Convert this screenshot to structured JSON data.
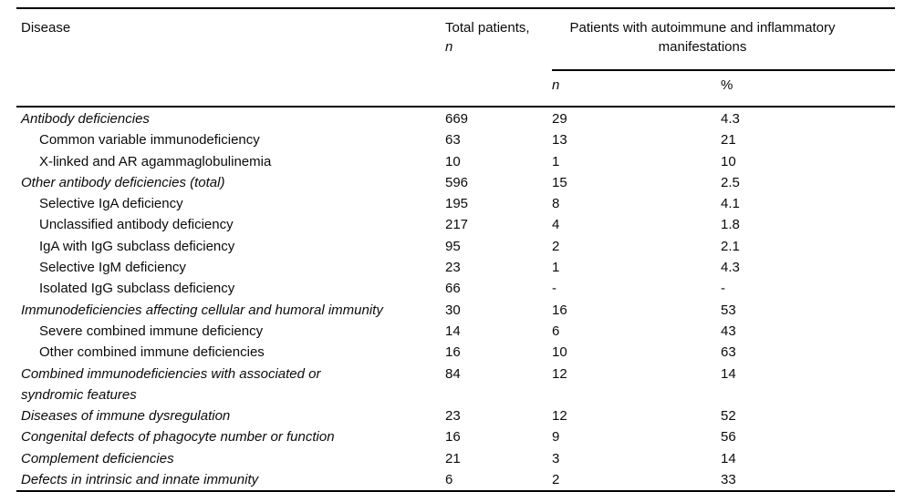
{
  "table": {
    "header": {
      "disease": "Disease",
      "total_line1": "Total patients,",
      "total_line2": "n",
      "spanner": "Patients with autoimmune and inflammatory manifestations",
      "sub_n": "n",
      "sub_pct": "%"
    },
    "rows": [
      {
        "disease": "Antibody deficiencies",
        "total": "669",
        "n": "29",
        "pct": "4.3"
      },
      {
        "disease": "Common variable immunodeficiency",
        "total": "63",
        "n": "13",
        "pct": "21"
      },
      {
        "disease": "X-linked and AR agammaglobulinemia",
        "total": "10",
        "n": "1",
        "pct": "10"
      },
      {
        "disease": "Other antibody deficiencies (total)",
        "total": "596",
        "n": "15",
        "pct": "2.5"
      },
      {
        "disease": "Selective IgA deficiency",
        "total": "195",
        "n": "8",
        "pct": "4.1"
      },
      {
        "disease": "Unclassified antibody deficiency",
        "total": "217",
        "n": "4",
        "pct": "1.8"
      },
      {
        "disease": "IgA with IgG subclass deficiency",
        "total": "95",
        "n": "2",
        "pct": "2.1"
      },
      {
        "disease": "Selective IgM deficiency",
        "total": "23",
        "n": "1",
        "pct": "4.3"
      },
      {
        "disease": "Isolated IgG subclass deficiency",
        "total": "66",
        "n": "-",
        "pct": "-"
      },
      {
        "disease": "Immunodeficiencies affecting cellular and humoral immunity",
        "total": "30",
        "n": "16",
        "pct": "53"
      },
      {
        "disease": "Severe combined immune deficiency",
        "total": "14",
        "n": "6",
        "pct": "43"
      },
      {
        "disease": "Other combined immune deficiencies",
        "total": "16",
        "n": "10",
        "pct": "63"
      },
      {
        "disease": "Combined immunodeficiencies with associated or syndromic features",
        "total": "84",
        "n": "12",
        "pct": "14"
      },
      {
        "disease": "Diseases of immune dysregulation",
        "total": "23",
        "n": "12",
        "pct": "52"
      },
      {
        "disease": "Congenital defects of phagocyte number or function",
        "total": "16",
        "n": "9",
        "pct": "56"
      },
      {
        "disease": "Complement deficiencies",
        "total": "21",
        "n": "3",
        "pct": "14"
      },
      {
        "disease": "Defects in intrinsic and innate immunity",
        "total": "6",
        "n": "2",
        "pct": "33"
      }
    ]
  }
}
